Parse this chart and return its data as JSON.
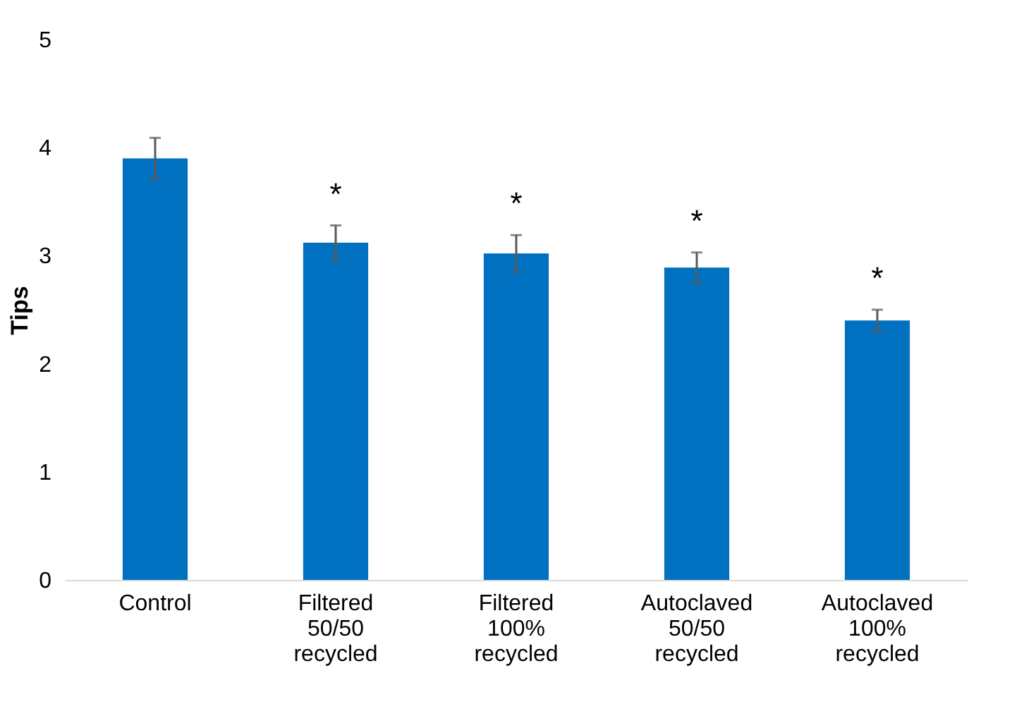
{
  "chart_data": {
    "type": "bar",
    "ylabel": "Tips",
    "categories": [
      "Control",
      "Filtered 50/50 recycled",
      "Filtered 100% recycled",
      "Autoclaved 50/50 recycled",
      "Autoclaved 100% recycled"
    ],
    "values": [
      3.9,
      3.12,
      3.02,
      2.89,
      2.4
    ],
    "errors": [
      0.19,
      0.16,
      0.17,
      0.14,
      0.1
    ],
    "color": "#0070c0",
    "ylim": [
      0,
      5
    ],
    "yticks": [
      0,
      1,
      2,
      3,
      4,
      5
    ],
    "grid": false,
    "annotations": [
      "*",
      "*",
      "*",
      "*"
    ]
  }
}
